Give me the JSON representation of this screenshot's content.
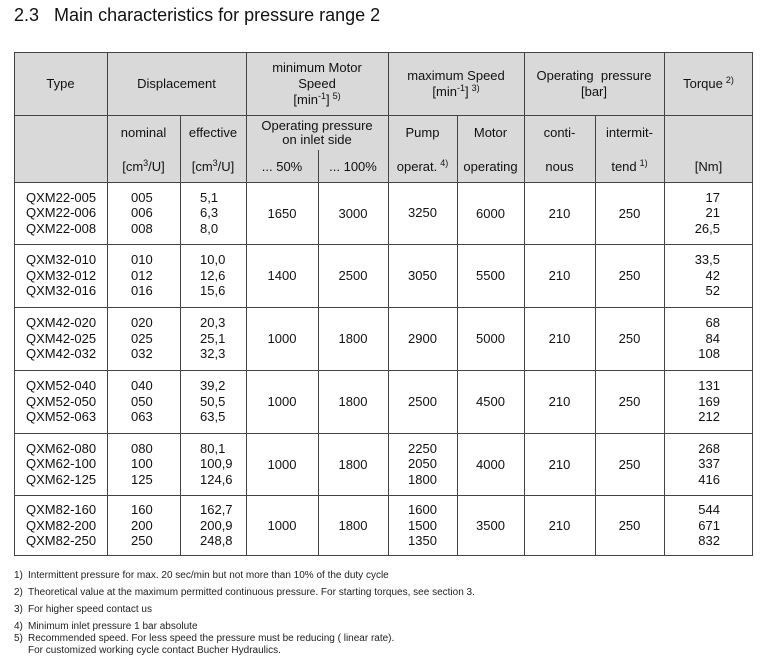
{
  "section": {
    "number": "2.3",
    "title": "Main characteristics for pressure range 2"
  },
  "table": {
    "header_rows": [
      [
        {
          "lines": [
            [
              {
                "t": "Type"
              }
            ]
          ]
        },
        {
          "lines": [
            [
              {
                "t": "Displacement"
              }
            ]
          ]
        },
        {
          "lines": [
            [
              {
                "t": "minimum Motor"
              }
            ],
            [
              {
                "t": "Speed"
              }
            ],
            [
              {
                "t": "[min"
              },
              {
                "sup": "-1"
              },
              {
                "t": "]"
              },
              {
                "sup": "5)"
              }
            ]
          ]
        },
        {
          "lines": [
            [
              {
                "t": "maximum Speed"
              }
            ],
            [
              {
                "t": "[min"
              },
              {
                "sup": "-1"
              },
              {
                "t": "]"
              },
              {
                "sup": "3)"
              }
            ]
          ]
        },
        {
          "lines": [
            [
              {
                "t": "Operating  pressure"
              }
            ],
            [
              {
                "t": "[bar]"
              }
            ]
          ]
        },
        {
          "lines": [
            [
              {
                "t": "Torque"
              },
              {
                "sup": "2)"
              }
            ]
          ]
        }
      ],
      [
        {
          "lines": [
            [
              {
                "t": "nominal"
              }
            ]
          ]
        },
        {
          "lines": [
            [
              {
                "t": "effective"
              }
            ]
          ]
        },
        {
          "lines": [
            [
              {
                "t": "Operating pressure"
              }
            ],
            [
              {
                "t": "on inlet side"
              }
            ]
          ]
        },
        {
          "lines": [
            [
              {
                "t": "Pump"
              }
            ]
          ]
        },
        {
          "lines": [
            [
              {
                "t": "Motor"
              }
            ]
          ]
        },
        {
          "lines": [
            [
              {
                "t": "conti-"
              }
            ]
          ]
        },
        {
          "lines": [
            [
              {
                "t": "intermit-"
              }
            ]
          ]
        }
      ],
      [
        {
          "lines": [
            [
              {
                "t": "[cm"
              },
              {
                "sup": "3"
              },
              {
                "t": "/U]"
              }
            ]
          ]
        },
        {
          "lines": [
            [
              {
                "t": "[cm"
              },
              {
                "sup": "3"
              },
              {
                "t": "/U]"
              }
            ]
          ]
        },
        {
          "lines": [
            [
              {
                "t": "... 50%"
              }
            ]
          ]
        },
        {
          "lines": [
            [
              {
                "t": "... 100%"
              }
            ]
          ]
        },
        {
          "lines": [
            [
              {
                "t": "operat."
              },
              {
                "sup": "4)"
              }
            ]
          ]
        },
        {
          "lines": [
            [
              {
                "t": "operating"
              }
            ]
          ]
        },
        {
          "lines": [
            [
              {
                "t": "nous"
              }
            ]
          ]
        },
        {
          "lines": [
            [
              {
                "t": "tend"
              },
              {
                "sup": "1)"
              }
            ]
          ]
        },
        {
          "lines": [
            [
              {
                "t": "[Nm]"
              }
            ]
          ]
        }
      ]
    ],
    "groups": [
      {
        "types": [
          "QXM22-005",
          "QXM22-006",
          "QXM22-008"
        ],
        "nominal": [
          "005",
          "006",
          "008"
        ],
        "effective": [
          "5,1",
          "6,3",
          "8,0"
        ],
        "speed_50": 1650,
        "speed_100": 3000,
        "pump": [
          3250
        ],
        "motor": 6000,
        "continuous": 210,
        "intermittent": 250,
        "torque": [
          17,
          21,
          "26,5"
        ]
      },
      {
        "types": [
          "QXM32-010",
          "QXM32-012",
          "QXM32-016"
        ],
        "nominal": [
          "010",
          "012",
          "016"
        ],
        "effective": [
          "10,0",
          "12,6",
          "15,6"
        ],
        "speed_50": 1400,
        "speed_100": 2500,
        "pump": [
          3050
        ],
        "motor": 5500,
        "continuous": 210,
        "intermittent": 250,
        "torque": [
          "33,5",
          42,
          52
        ]
      },
      {
        "types": [
          "QXM42-020",
          "QXM42-025",
          "QXM42-032"
        ],
        "nominal": [
          "020",
          "025",
          "032"
        ],
        "effective": [
          "20,3",
          "25,1",
          "32,3"
        ],
        "speed_50": 1000,
        "speed_100": 1800,
        "pump": [
          2900
        ],
        "motor": 5000,
        "continuous": 210,
        "intermittent": 250,
        "torque": [
          68,
          84,
          108
        ]
      },
      {
        "types": [
          "QXM52-040",
          "QXM52-050",
          "QXM52-063"
        ],
        "nominal": [
          "040",
          "050",
          "063"
        ],
        "effective": [
          "39,2",
          "50,5",
          "63,5"
        ],
        "speed_50": 1000,
        "speed_100": 1800,
        "pump": [
          2500
        ],
        "motor": 4500,
        "continuous": 210,
        "intermittent": 250,
        "torque": [
          131,
          169,
          212
        ]
      },
      {
        "types": [
          "QXM62-080",
          "QXM62-100",
          "QXM62-125"
        ],
        "nominal": [
          "080",
          "100",
          "125"
        ],
        "effective": [
          "80,1",
          "100,9",
          "124,6"
        ],
        "speed_50": 1000,
        "speed_100": 1800,
        "pump": [
          2250,
          2050,
          1800
        ],
        "motor": 4000,
        "continuous": 210,
        "intermittent": 250,
        "torque": [
          268,
          337,
          416
        ]
      },
      {
        "types": [
          "QXM82-160",
          "QXM82-200",
          "QXM82-250"
        ],
        "nominal": [
          "160",
          "200",
          "250"
        ],
        "effective": [
          "162,7",
          "200,9",
          "248,8"
        ],
        "speed_50": 1000,
        "speed_100": 1800,
        "pump": [
          1600,
          1500,
          1350
        ],
        "motor": 3500,
        "continuous": 210,
        "intermittent": 250,
        "torque": [
          544,
          671,
          832
        ]
      }
    ]
  },
  "footnotes": [
    {
      "mark": "1)",
      "lines": [
        "Intermittent pressure for max. 20 sec/min but not more than 10% of the duty cycle"
      ]
    },
    {
      "mark": "2)",
      "lines": [
        "Theoretical value at the maximum permitted continuous pressure. For starting torques, see section 3."
      ]
    },
    {
      "mark": "3)",
      "lines": [
        "For higher speed contact us"
      ]
    },
    {
      "mark": "4)",
      "lines": [
        "Minimum inlet pressure 1 bar absolute"
      ]
    },
    {
      "mark": "5)",
      "lines": [
        "Recommended speed. For less speed the pressure must be reducing ( linear rate).",
        "For customized working cycle contact Bucher Hydraulics."
      ]
    }
  ]
}
